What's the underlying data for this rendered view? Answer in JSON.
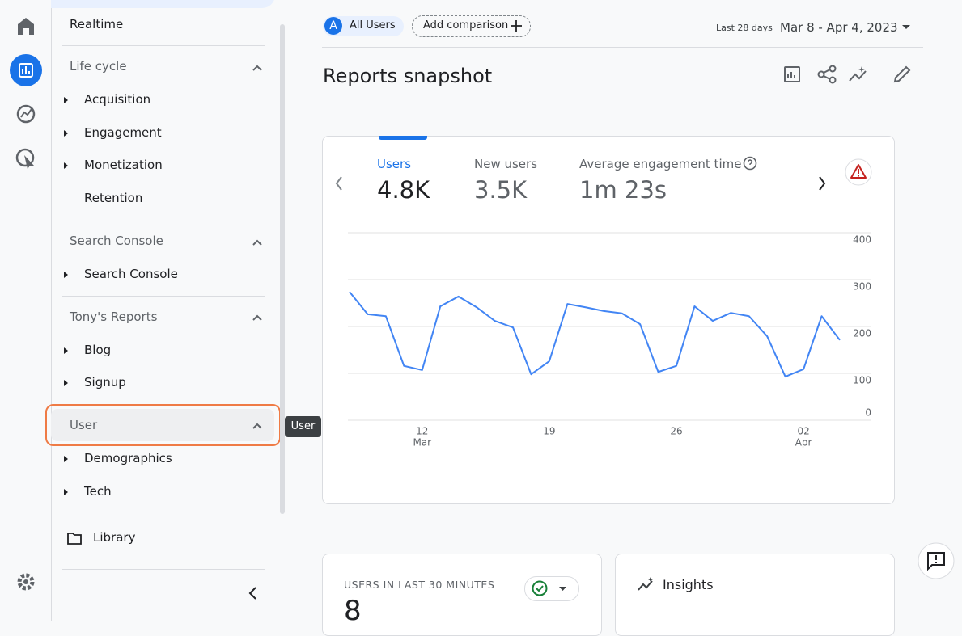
{
  "nav": {
    "realtime": "Realtime",
    "sections": [
      {
        "title": "Life cycle",
        "items": [
          "Acquisition",
          "Engagement",
          "Monetization",
          "Retention"
        ]
      },
      {
        "title": "Search Console",
        "items": [
          "Search Console"
        ]
      },
      {
        "title": "Tony's Reports",
        "items": [
          "Blog",
          "Signup"
        ]
      },
      {
        "title": "User",
        "items": [
          "Demographics",
          "Tech"
        ]
      }
    ],
    "library": "Library"
  },
  "tooltip": "User",
  "header": {
    "audience_avatar": "A",
    "audience": "All Users",
    "add_comparison": "Add comparison",
    "date_range_label": "Last 28 days",
    "date_range": "Mar 8 - Apr 4, 2023"
  },
  "page_title": "Reports snapshot",
  "metrics": [
    {
      "label": "Users",
      "value": "4.8K"
    },
    {
      "label": "New users",
      "value": "3.5K"
    },
    {
      "label": "Average engagement time",
      "value": "1m 23s"
    }
  ],
  "chart_data": {
    "type": "line",
    "categories": [
      null,
      null,
      null,
      null,
      "12",
      null,
      null,
      null,
      null,
      null,
      null,
      "19",
      null,
      null,
      null,
      null,
      null,
      null,
      "26",
      null,
      null,
      null,
      null,
      null,
      null,
      "02",
      null,
      null
    ],
    "category_months": [
      null,
      null,
      null,
      null,
      "Mar",
      null,
      null,
      null,
      null,
      null,
      null,
      null,
      null,
      null,
      null,
      null,
      null,
      null,
      null,
      null,
      null,
      null,
      null,
      null,
      null,
      "Apr",
      null,
      null
    ],
    "values": [
      274,
      226,
      222,
      116,
      107,
      243,
      264,
      241,
      212,
      198,
      98,
      126,
      248,
      241,
      233,
      228,
      205,
      103,
      116,
      243,
      212,
      229,
      222,
      179,
      93,
      109,
      222,
      171
    ],
    "color": "#4285f4",
    "ylim": [
      0,
      400
    ],
    "yticks": [
      0,
      100,
      200,
      300,
      400
    ],
    "grid": true
  },
  "realtime_card": {
    "title": "USERS IN LAST 30 MINUTES",
    "value": "8"
  },
  "insights_card": {
    "title": "Insights"
  }
}
